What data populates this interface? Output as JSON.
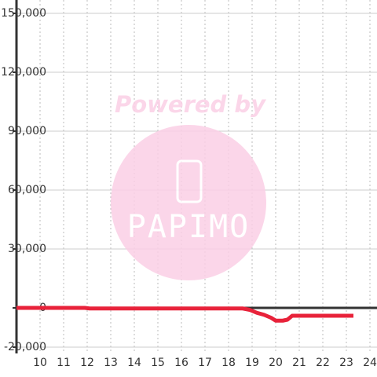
{
  "chart_data": {
    "type": "line",
    "watermark": {
      "text": "Powered by",
      "logo": "PAPIMO"
    },
    "x": [
      9,
      11.9,
      12.1,
      18.6,
      18.9,
      19.2,
      19.5,
      19.8,
      20.0,
      20.3,
      20.5,
      20.7,
      21.0,
      23.3
    ],
    "series": [
      {
        "color": "#e8223a",
        "values": [
          0,
          0,
          -300,
          -300,
          -1000,
          -2500,
          -3500,
          -5000,
          -6500,
          -6500,
          -6000,
          -4000,
          -4000,
          -4000
        ]
      }
    ],
    "xlim": [
      9,
      24.3
    ],
    "xticks": [
      10,
      11,
      12,
      13,
      14,
      15,
      16,
      17,
      18,
      19,
      20,
      21,
      22,
      23,
      24
    ],
    "ylim": [
      -20000,
      150000
    ],
    "yticks": [
      {
        "value": -20000,
        "label": "-20,000"
      },
      0,
      {
        "value": 30000,
        "label": "30,000"
      },
      {
        "value": 60000,
        "label": "60,000"
      },
      {
        "value": 90000,
        "label": "90,000"
      },
      {
        "value": 120000,
        "label": "120,000"
      },
      {
        "value": 150000,
        "label": "150,000"
      }
    ],
    "grid": true
  }
}
